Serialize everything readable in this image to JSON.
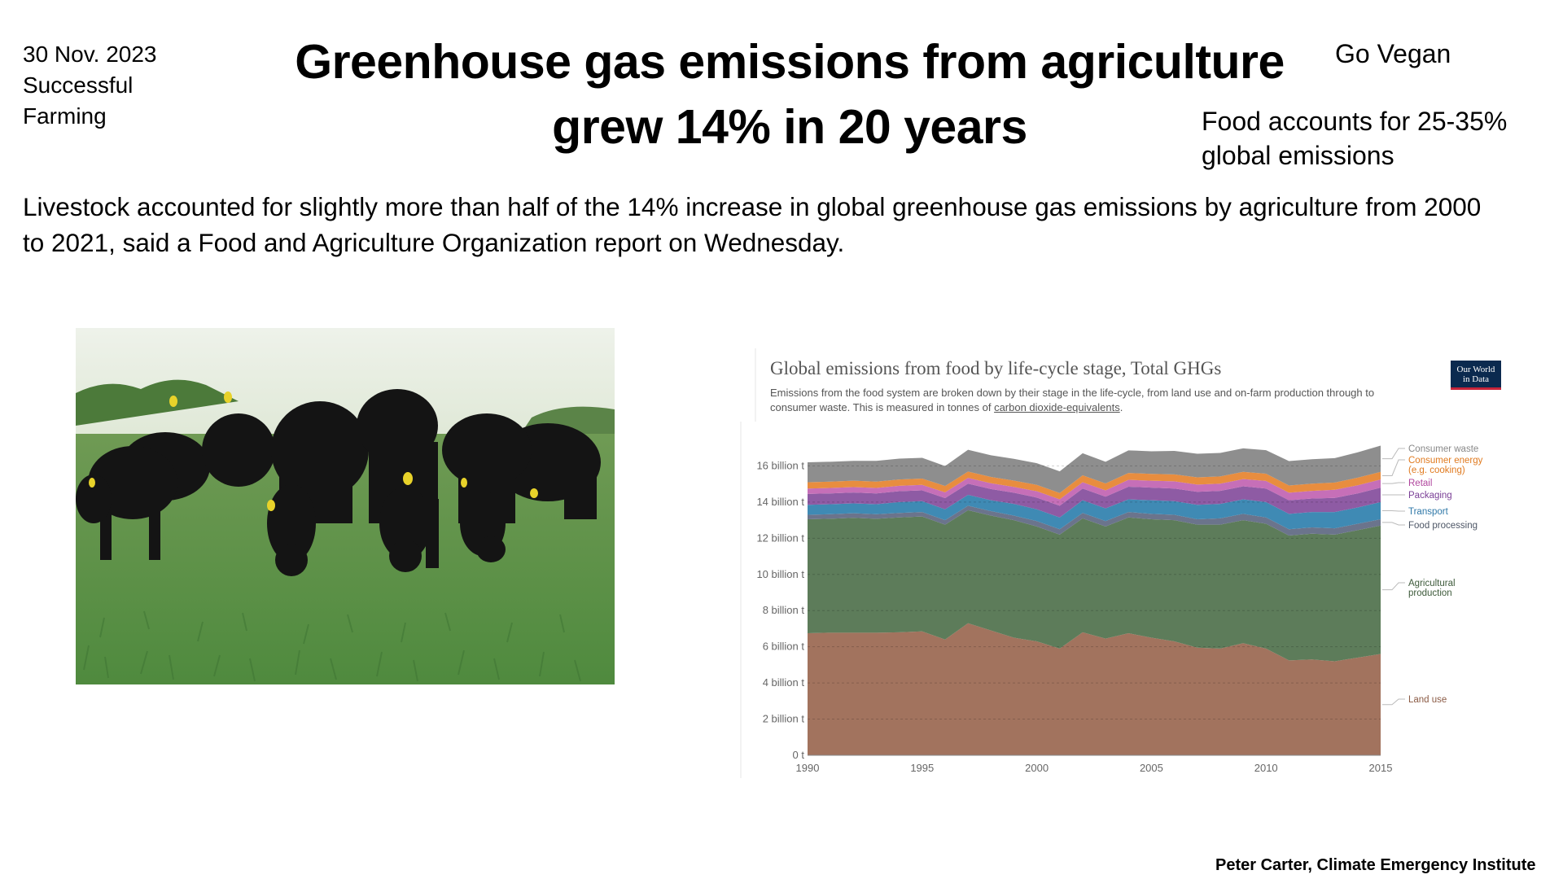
{
  "header": {
    "date": "30 Nov. 2023",
    "source_line1": "Successful",
    "source_line2": "Farming",
    "title_line1": "Greenhouse gas emissions from agriculture",
    "title_line2": "grew 14% in 20 years",
    "go_vegan": "Go Vegan",
    "food_note_line1": "Food accounts for 25-35%",
    "food_note_line2": "global emissions"
  },
  "summary_line1": "Livestock accounted for slightly more than half of the 14% increase in global greenhouse gas emissions by agriculture from 2000",
  "summary_line2": "to 2021, said a Food and Agriculture Organization report on Wednesday.",
  "photo": {
    "subject": "black cattle grazing on grass"
  },
  "credit": "Peter Carter, Climate Emergency Institute",
  "colors": {
    "land_use": "#a2735e",
    "agricultural_production": "#5d7c5a",
    "food_processing": "#6b748c",
    "transport": "#3f8ab4",
    "packaging": "#8e5ba4",
    "retail": "#c66fb8",
    "consumer_energy": "#e88d3f",
    "consumer_waste": "#8e8e8e"
  },
  "chart_data": {
    "type": "area",
    "title": "Global emissions from food by life-cycle stage, Total GHGs",
    "subtitle_line1": "Emissions from the food system are broken down by their stage in the life-cycle, from land use and on-farm production through to",
    "subtitle_pre": "consumer waste. This is measured in tonnes of ",
    "subtitle_link": "carbon dioxide-equivalents",
    "subtitle_post": ".",
    "logo_line1": "Our World",
    "logo_line2": "in Data",
    "x": [
      1990,
      1991,
      1992,
      1993,
      1994,
      1995,
      1996,
      1997,
      1998,
      1999,
      2000,
      2001,
      2002,
      2003,
      2004,
      2005,
      2006,
      2007,
      2008,
      2009,
      2010,
      2011,
      2012,
      2013,
      2014,
      2015
    ],
    "x_ticks": [
      "1990",
      "1995",
      "2000",
      "2005",
      "2010",
      "2015"
    ],
    "y_ticks": [
      "0 t",
      "2 billion t",
      "4 billion t",
      "6 billion t",
      "8 billion t",
      "10 billion t",
      "12 billion t",
      "14 billion t",
      "16 billion t"
    ],
    "ylim": [
      0,
      18000000000
    ],
    "series": [
      {
        "name": "Land use",
        "color_key": "land_use",
        "values": [
          6.75,
          6.78,
          6.78,
          6.78,
          6.8,
          6.85,
          6.4,
          7.3,
          6.9,
          6.5,
          6.3,
          5.9,
          6.8,
          6.45,
          6.75,
          6.5,
          6.3,
          5.95,
          5.9,
          6.2,
          5.9,
          5.25,
          5.3,
          5.2,
          5.4,
          5.6
        ]
      },
      {
        "name": "Agricultural production",
        "color_key": "agricultural_production",
        "values": [
          6.3,
          6.3,
          6.35,
          6.3,
          6.35,
          6.35,
          6.35,
          6.25,
          6.35,
          6.5,
          6.35,
          6.3,
          6.3,
          6.2,
          6.4,
          6.55,
          6.7,
          6.8,
          6.85,
          6.8,
          6.9,
          6.9,
          6.95,
          7.0,
          7.05,
          7.1
        ]
      },
      {
        "name": "Food processing",
        "color_key": "food_processing",
        "values": [
          0.25,
          0.25,
          0.25,
          0.25,
          0.25,
          0.25,
          0.25,
          0.25,
          0.25,
          0.25,
          0.3,
          0.3,
          0.3,
          0.3,
          0.3,
          0.3,
          0.3,
          0.3,
          0.35,
          0.35,
          0.35,
          0.35,
          0.35,
          0.35,
          0.35,
          0.35
        ]
      },
      {
        "name": "Transport",
        "color_key": "transport",
        "values": [
          0.55,
          0.55,
          0.55,
          0.55,
          0.6,
          0.6,
          0.6,
          0.6,
          0.6,
          0.65,
          0.65,
          0.65,
          0.7,
          0.7,
          0.7,
          0.75,
          0.75,
          0.8,
          0.8,
          0.8,
          0.85,
          0.85,
          0.85,
          0.9,
          0.9,
          0.95
        ]
      },
      {
        "name": "Packaging",
        "color_key": "packaging",
        "values": [
          0.6,
          0.6,
          0.6,
          0.6,
          0.6,
          0.6,
          0.62,
          0.62,
          0.62,
          0.62,
          0.65,
          0.65,
          0.65,
          0.65,
          0.7,
          0.7,
          0.7,
          0.72,
          0.72,
          0.72,
          0.75,
          0.75,
          0.75,
          0.78,
          0.78,
          0.8
        ]
      },
      {
        "name": "Retail",
        "color_key": "retail",
        "values": [
          0.3,
          0.3,
          0.3,
          0.3,
          0.3,
          0.3,
          0.32,
          0.32,
          0.32,
          0.32,
          0.35,
          0.35,
          0.35,
          0.35,
          0.38,
          0.38,
          0.4,
          0.4,
          0.4,
          0.4,
          0.42,
          0.42,
          0.42,
          0.45,
          0.45,
          0.45
        ]
      },
      {
        "name": "Consumer energy (e.g. cooking)",
        "color_key": "consumer_energy",
        "values": [
          0.35,
          0.35,
          0.35,
          0.35,
          0.35,
          0.35,
          0.35,
          0.35,
          0.35,
          0.35,
          0.35,
          0.35,
          0.38,
          0.38,
          0.38,
          0.38,
          0.38,
          0.4,
          0.4,
          0.4,
          0.4,
          0.4,
          0.4,
          0.4,
          0.42,
          0.42
        ]
      },
      {
        "name": "Consumer waste",
        "color_key": "consumer_waste",
        "values": [
          1.1,
          1.1,
          1.1,
          1.15,
          1.15,
          1.15,
          1.1,
          1.2,
          1.2,
          1.2,
          1.2,
          1.2,
          1.22,
          1.2,
          1.25,
          1.25,
          1.3,
          1.3,
          1.3,
          1.3,
          1.3,
          1.35,
          1.35,
          1.35,
          1.4,
          1.45
        ]
      }
    ],
    "value_unit_multiplier": 1000000000,
    "legend_labels": [
      {
        "key": "consumer_waste",
        "lines": [
          "Consumer waste"
        ]
      },
      {
        "key": "consumer_energy",
        "lines": [
          "Consumer energy",
          "(e.g. cooking)"
        ]
      },
      {
        "key": "retail",
        "lines": [
          "Retail"
        ]
      },
      {
        "key": "packaging",
        "lines": [
          "Packaging"
        ]
      },
      {
        "key": "transport",
        "lines": [
          "Transport"
        ]
      },
      {
        "key": "food_processing",
        "lines": [
          "Food processing"
        ]
      },
      {
        "key": "agricultural_production",
        "lines": [
          "Agricultural",
          "production"
        ]
      },
      {
        "key": "land_use",
        "lines": [
          "Land use"
        ]
      }
    ],
    "grid": true,
    "legend_position": "right"
  }
}
